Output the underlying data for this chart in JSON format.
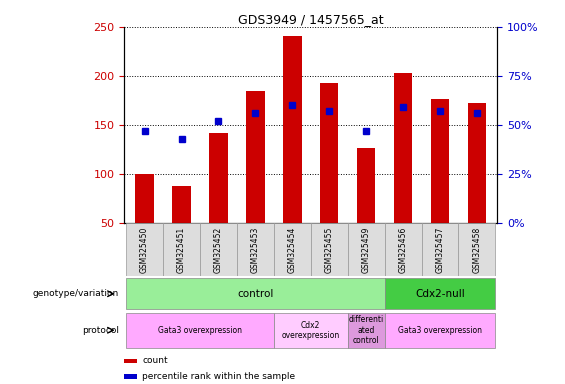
{
  "title": "GDS3949 / 1457565_at",
  "samples": [
    "GSM325450",
    "GSM325451",
    "GSM325452",
    "GSM325453",
    "GSM325454",
    "GSM325455",
    "GSM325459",
    "GSM325456",
    "GSM325457",
    "GSM325458"
  ],
  "count_values": [
    100,
    88,
    142,
    185,
    241,
    193,
    126,
    203,
    176,
    172
  ],
  "percentile_values": [
    47,
    43,
    52,
    56,
    60,
    57,
    47,
    59,
    57,
    56
  ],
  "ylim_left": [
    50,
    250
  ],
  "ylim_right": [
    0,
    100
  ],
  "yticks_left": [
    50,
    100,
    150,
    200,
    250
  ],
  "yticks_right": [
    0,
    25,
    50,
    75,
    100
  ],
  "bar_color": "#cc0000",
  "dot_color": "#0000cc",
  "bar_width": 0.5,
  "genotype_groups": [
    {
      "label": "control",
      "start": 0,
      "end": 7,
      "color": "#99ee99"
    },
    {
      "label": "Cdx2-null",
      "start": 7,
      "end": 10,
      "color": "#44cc44"
    }
  ],
  "protocol_groups": [
    {
      "label": "Gata3 overexpression",
      "start": 0,
      "end": 4,
      "color": "#ffaaff"
    },
    {
      "label": "Cdx2\noverexpression",
      "start": 4,
      "end": 6,
      "color": "#ffccff"
    },
    {
      "label": "differenti\nated\ncontrol",
      "start": 6,
      "end": 7,
      "color": "#dd99dd"
    },
    {
      "label": "Gata3 overexpression",
      "start": 7,
      "end": 10,
      "color": "#ffaaff"
    }
  ],
  "left_label_color": "#cc0000",
  "right_label_color": "#0000cc"
}
